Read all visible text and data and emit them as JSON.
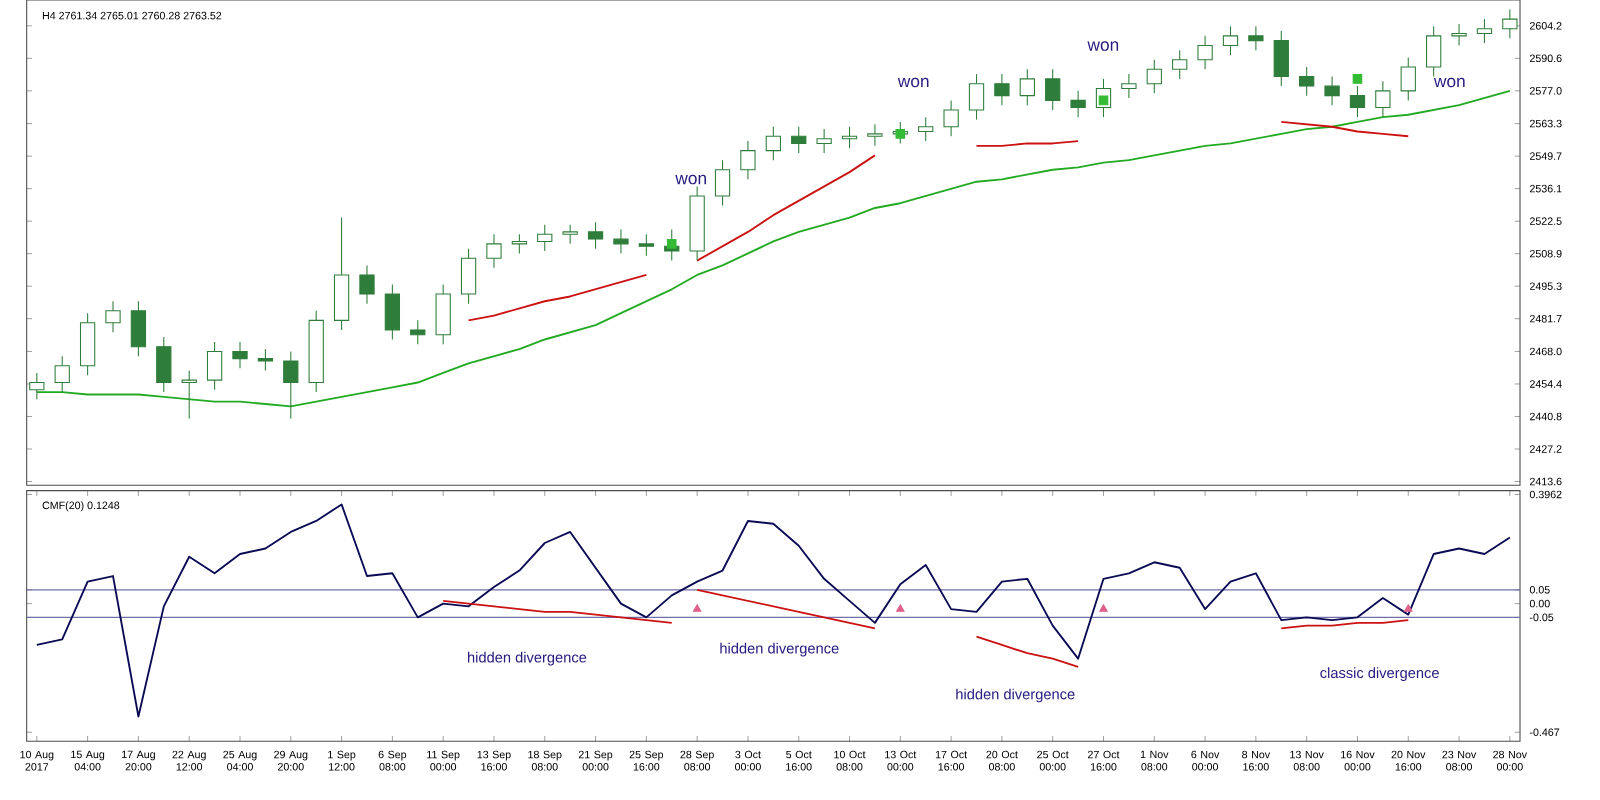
{
  "chart_data": [
    {
      "type": "candlestick",
      "subtitle": "H4 2761.34 2765.01 2760.28 2763.52",
      "color": "#2f7d3a",
      "ohlc": [
        [
          2452,
          2459,
          2448,
          2455
        ],
        [
          2455,
          2466,
          2451,
          2462
        ],
        [
          2462,
          2484,
          2458,
          2480
        ],
        [
          2480,
          2489,
          2476,
          2485
        ],
        [
          2485,
          2489,
          2466,
          2470
        ],
        [
          2470,
          2474,
          2451,
          2455
        ],
        [
          2455,
          2460,
          2440,
          2456
        ],
        [
          2456,
          2472,
          2452,
          2468
        ],
        [
          2468,
          2472,
          2461,
          2465
        ],
        [
          2465,
          2469,
          2460,
          2464
        ],
        [
          2464,
          2468,
          2440,
          2455
        ],
        [
          2455,
          2485,
          2451,
          2481
        ],
        [
          2481,
          2524,
          2477,
          2500
        ],
        [
          2500,
          2504,
          2488,
          2492
        ],
        [
          2492,
          2496,
          2473,
          2477
        ],
        [
          2477,
          2481,
          2471,
          2475
        ],
        [
          2475,
          2496,
          2471,
          2492
        ],
        [
          2492,
          2511,
          2488,
          2507
        ],
        [
          2507,
          2517,
          2503,
          2513
        ],
        [
          2513,
          2517,
          2509,
          2514
        ],
        [
          2514,
          2521,
          2510,
          2517
        ],
        [
          2517,
          2521,
          2513,
          2518
        ],
        [
          2518,
          2522,
          2511,
          2515
        ],
        [
          2515,
          2519,
          2509,
          2513
        ],
        [
          2513,
          2517,
          2508,
          2512
        ],
        [
          2512,
          2519,
          2506,
          2510
        ],
        [
          2510,
          2537,
          2506,
          2533
        ],
        [
          2533,
          2548,
          2529,
          2544
        ],
        [
          2544,
          2556,
          2540,
          2552
        ],
        [
          2552,
          2562,
          2548,
          2558
        ],
        [
          2558,
          2562,
          2551,
          2555
        ],
        [
          2555,
          2561,
          2551,
          2557
        ],
        [
          2557,
          2562,
          2553,
          2558
        ],
        [
          2558,
          2563,
          2554,
          2559
        ],
        [
          2559,
          2564,
          2555,
          2560
        ],
        [
          2560,
          2566,
          2556,
          2562
        ],
        [
          2562,
          2573,
          2558,
          2569
        ],
        [
          2569,
          2584,
          2565,
          2580
        ],
        [
          2580,
          2584,
          2571,
          2575
        ],
        [
          2575,
          2586,
          2571,
          2582
        ],
        [
          2582,
          2586,
          2569,
          2573
        ],
        [
          2573,
          2577,
          2566,
          2570
        ],
        [
          2570,
          2582,
          2566,
          2578
        ],
        [
          2578,
          2584,
          2574,
          2580
        ],
        [
          2580,
          2590,
          2576,
          2586
        ],
        [
          2586,
          2594,
          2582,
          2590
        ],
        [
          2590,
          2600,
          2586,
          2596
        ],
        [
          2596,
          2604,
          2592,
          2600
        ],
        [
          2600,
          2604,
          2594,
          2598
        ],
        [
          2598,
          2602,
          2579,
          2583
        ],
        [
          2583,
          2587,
          2575,
          2579
        ],
        [
          2579,
          2583,
          2571,
          2575
        ],
        [
          2575,
          2579,
          2566,
          2570
        ],
        [
          2570,
          2581,
          2566,
          2577
        ],
        [
          2577,
          2591,
          2573,
          2587
        ],
        [
          2587,
          2604,
          2583,
          2600
        ],
        [
          2600,
          2605,
          2596,
          2601
        ],
        [
          2601,
          2607,
          2597,
          2603
        ],
        [
          2603,
          2611,
          2599,
          2607
        ]
      ],
      "series": [
        {
          "type": "line",
          "color": "#22aa22",
          "values": [
            2451,
            2451,
            2450,
            2450,
            2450,
            2449,
            2448,
            2447,
            2447,
            2446,
            2445,
            2447,
            2449,
            2451,
            2453,
            2455,
            2459,
            2463,
            2466,
            2469,
            2473,
            2476,
            2479,
            2484,
            2489,
            2494,
            2500,
            2504,
            2509,
            2514,
            2518,
            2521,
            2524,
            2528,
            2530,
            2533,
            2536,
            2539,
            2540,
            2542,
            2544,
            2545,
            2547,
            2548,
            2550,
            2552,
            2554,
            2555,
            2557,
            2559,
            2561,
            2562,
            2564,
            2566,
            2567,
            2569,
            2571,
            2574,
            2577
          ]
        },
        {
          "type": "line",
          "color": "#cc1111",
          "values": [
            null,
            null,
            null,
            null,
            null,
            null,
            null,
            null,
            null,
            null,
            null,
            null,
            null,
            null,
            null,
            null,
            null,
            2481,
            2483,
            2486,
            2489,
            2491,
            2494,
            2497,
            2500,
            null,
            null,
            null,
            null,
            null,
            null,
            null,
            null,
            null,
            null,
            null,
            null,
            null,
            null,
            null,
            null,
            null,
            null,
            null,
            null,
            null,
            null,
            null,
            null,
            null,
            null,
            null,
            null,
            null,
            null,
            null,
            null,
            null,
            null
          ]
        },
        {
          "type": "line",
          "color": "#cc1111",
          "values": [
            null,
            null,
            null,
            null,
            null,
            null,
            null,
            null,
            null,
            null,
            null,
            null,
            null,
            null,
            null,
            null,
            null,
            null,
            null,
            null,
            null,
            null,
            null,
            null,
            null,
            null,
            2506,
            2512,
            2518,
            2525,
            2531,
            2537,
            2543,
            2550,
            null,
            null,
            null,
            null,
            null,
            null,
            null,
            null,
            null,
            null,
            null,
            null,
            null,
            null,
            null,
            null,
            null,
            null,
            null,
            null,
            null,
            null,
            null,
            null,
            null
          ]
        },
        {
          "type": "line",
          "color": "#cc1111",
          "values": [
            null,
            null,
            null,
            null,
            null,
            null,
            null,
            null,
            null,
            null,
            null,
            null,
            null,
            null,
            null,
            null,
            null,
            null,
            null,
            null,
            null,
            null,
            null,
            null,
            null,
            null,
            null,
            null,
            null,
            null,
            null,
            null,
            null,
            null,
            null,
            null,
            null,
            2554,
            2554,
            2555,
            2555,
            2556,
            null,
            null,
            null,
            null,
            null,
            null,
            null,
            null,
            null,
            null,
            null,
            null,
            null,
            null,
            null,
            null,
            null
          ]
        },
        {
          "type": "line",
          "color": "#cc1111",
          "values": [
            null,
            null,
            null,
            null,
            null,
            null,
            null,
            null,
            null,
            null,
            null,
            null,
            null,
            null,
            null,
            null,
            null,
            null,
            null,
            null,
            null,
            null,
            null,
            null,
            null,
            null,
            null,
            null,
            null,
            null,
            null,
            null,
            null,
            null,
            null,
            null,
            null,
            null,
            null,
            null,
            null,
            null,
            null,
            null,
            null,
            null,
            null,
            null,
            null,
            2564,
            2563,
            2562,
            2560,
            2559,
            2558,
            null,
            null,
            null,
            null
          ]
        },
        {
          "type": "scatter",
          "marker": "square",
          "color": "#33bb33",
          "values": [
            null,
            null,
            null,
            null,
            null,
            null,
            null,
            null,
            null,
            null,
            null,
            null,
            null,
            null,
            null,
            null,
            null,
            null,
            null,
            null,
            null,
            null,
            null,
            null,
            null,
            2513,
            null,
            null,
            null,
            null,
            null,
            null,
            null,
            null,
            2559,
            null,
            null,
            null,
            null,
            null,
            null,
            null,
            2573,
            null,
            null,
            null,
            null,
            null,
            null,
            null,
            null,
            null,
            2582,
            null,
            null,
            null,
            null,
            null,
            null
          ]
        }
      ],
      "annotations": [
        "won",
        "won",
        "won",
        "won"
      ],
      "ylim": [
        2412,
        2615
      ],
      "yticks": [
        2413.6,
        2427.2,
        2440.8,
        2454.4,
        {
          "value": 2468,
          "label": "2468.0"
        },
        2481.7,
        2495.3,
        2508.9,
        2522.5,
        2536.1,
        2549.7,
        2563.3,
        {
          "value": 2577,
          "label": "2577.0"
        },
        2590.6,
        2604.2
      ],
      "tick_labels": "y"
    },
    {
      "type": "line",
      "subtitle": "CMF(20) 0.1248",
      "categories": [
        "10 Aug 2017",
        null,
        "15 Aug 04:00",
        null,
        "17 Aug 20:00",
        null,
        "22 Aug 12:00",
        null,
        "25 Aug 04:00",
        null,
        "29 Aug 20:00",
        null,
        "1 Sep 12:00",
        null,
        "6 Sep 08:00",
        null,
        "11 Sep 00:00",
        null,
        "13 Sep 16:00",
        null,
        "18 Sep 08:00",
        null,
        "21 Sep 00:00",
        null,
        "25 Sep 16:00",
        null,
        "28 Sep 08:00",
        null,
        "3 Oct 00:00",
        null,
        "5 Oct 16:00",
        null,
        "10 Oct 08:00",
        null,
        "13 Oct 00:00",
        null,
        "17 Oct 16:00",
        null,
        "20 Oct 08:00",
        null,
        "25 Oct 00:00",
        null,
        "27 Oct 16:00",
        null,
        "1 Nov 08:00",
        null,
        "6 Nov 00:00",
        null,
        "8 Nov 16:00",
        null,
        "13 Nov 08:00",
        null,
        "16 Nov 00:00",
        null,
        "20 Nov 16:00",
        null,
        "23 Nov 08:00",
        null,
        "28 Nov 00:00"
      ],
      "series": [
        {
          "type": "line",
          "color": "#0a0a55",
          "values": [
            -0.15,
            -0.13,
            0.08,
            0.1,
            -0.41,
            -0.01,
            0.17,
            0.11,
            0.18,
            0.2,
            0.26,
            0.3,
            0.36,
            0.1,
            0.11,
            -0.05,
            0,
            -0.01,
            0.06,
            0.12,
            0.22,
            0.26,
            0.13,
            0,
            -0.05,
            0.03,
            0.08,
            0.12,
            0.3,
            0.29,
            0.21,
            0.09,
            0.01,
            -0.07,
            0.07,
            0.14,
            -0.02,
            -0.03,
            0.08,
            0.09,
            -0.08,
            -0.2,
            0.09,
            0.11,
            0.15,
            0.13,
            -0.02,
            0.08,
            0.11,
            -0.06,
            -0.05,
            -0.06,
            -0.05,
            0.02,
            -0.04,
            0.18,
            0.2,
            0.18,
            0.24
          ]
        },
        {
          "type": "line",
          "color": "#cc1111",
          "values": [
            null,
            null,
            null,
            null,
            null,
            null,
            null,
            null,
            null,
            null,
            null,
            null,
            null,
            null,
            null,
            null,
            0.01,
            0,
            -0.01,
            -0.02,
            -0.03,
            -0.03,
            -0.04,
            -0.05,
            -0.06,
            -0.07,
            null,
            null,
            null,
            null,
            null,
            null,
            null,
            null,
            null,
            null,
            null,
            null,
            null,
            null,
            null,
            null,
            null,
            null,
            null,
            null,
            null,
            null,
            null,
            null,
            null,
            null,
            null,
            null,
            null,
            null,
            null,
            null,
            null
          ]
        },
        {
          "type": "line",
          "color": "#cc1111",
          "values": [
            null,
            null,
            null,
            null,
            null,
            null,
            null,
            null,
            null,
            null,
            null,
            null,
            null,
            null,
            null,
            null,
            null,
            null,
            null,
            null,
            null,
            null,
            null,
            null,
            null,
            null,
            0.05,
            0.03,
            0.01,
            -0.01,
            -0.03,
            -0.05,
            -0.07,
            -0.09,
            null,
            null,
            null,
            null,
            null,
            null,
            null,
            null,
            null,
            null,
            null,
            null,
            null,
            null,
            null,
            null,
            null,
            null,
            null,
            null,
            null,
            null,
            null,
            null,
            null
          ]
        },
        {
          "type": "line",
          "color": "#cc1111",
          "values": [
            null,
            null,
            null,
            null,
            null,
            null,
            null,
            null,
            null,
            null,
            null,
            null,
            null,
            null,
            null,
            null,
            null,
            null,
            null,
            null,
            null,
            null,
            null,
            null,
            null,
            null,
            null,
            null,
            null,
            null,
            null,
            null,
            null,
            null,
            null,
            null,
            null,
            -0.12,
            -0.15,
            -0.18,
            -0.2,
            -0.23,
            null,
            null,
            null,
            null,
            null,
            null,
            null,
            null,
            null,
            null,
            null,
            null,
            null,
            null,
            null,
            null,
            null
          ]
        },
        {
          "type": "line",
          "color": "#cc1111",
          "values": [
            null,
            null,
            null,
            null,
            null,
            null,
            null,
            null,
            null,
            null,
            null,
            null,
            null,
            null,
            null,
            null,
            null,
            null,
            null,
            null,
            null,
            null,
            null,
            null,
            null,
            null,
            null,
            null,
            null,
            null,
            null,
            null,
            null,
            null,
            null,
            null,
            null,
            null,
            null,
            null,
            null,
            null,
            null,
            null,
            null,
            null,
            null,
            null,
            null,
            -0.09,
            -0.08,
            -0.08,
            -0.07,
            -0.07,
            -0.06,
            null,
            null,
            null,
            null
          ]
        },
        {
          "type": "scatter",
          "marker": "triangle",
          "color": "#e0608a",
          "values": [
            null,
            null,
            null,
            null,
            null,
            null,
            null,
            null,
            null,
            null,
            null,
            null,
            null,
            null,
            null,
            null,
            null,
            null,
            null,
            null,
            null,
            null,
            null,
            null,
            null,
            null,
            -0.02,
            null,
            null,
            null,
            null,
            null,
            null,
            null,
            -0.02,
            null,
            null,
            null,
            null,
            null,
            null,
            null,
            -0.02,
            null,
            null,
            null,
            null,
            null,
            null,
            null,
            null,
            null,
            null,
            null,
            -0.02,
            null,
            null,
            null,
            null
          ]
        }
      ],
      "ref_lines": [
        {
          "axis": "y",
          "value": 0.05,
          "color": "#7070a8"
        },
        {
          "axis": "y",
          "value": -0.05,
          "color": "#7070a8"
        }
      ],
      "annotations": [
        "hidden divergence",
        "hidden divergence",
        "hidden divergence",
        "classic divergence"
      ],
      "ylim": [
        -0.5,
        0.41
      ],
      "yticks": [
        -0.467,
        -0.05,
        {
          "value": 0,
          "label": "0.00"
        },
        0.05,
        0.3962
      ]
    }
  ]
}
